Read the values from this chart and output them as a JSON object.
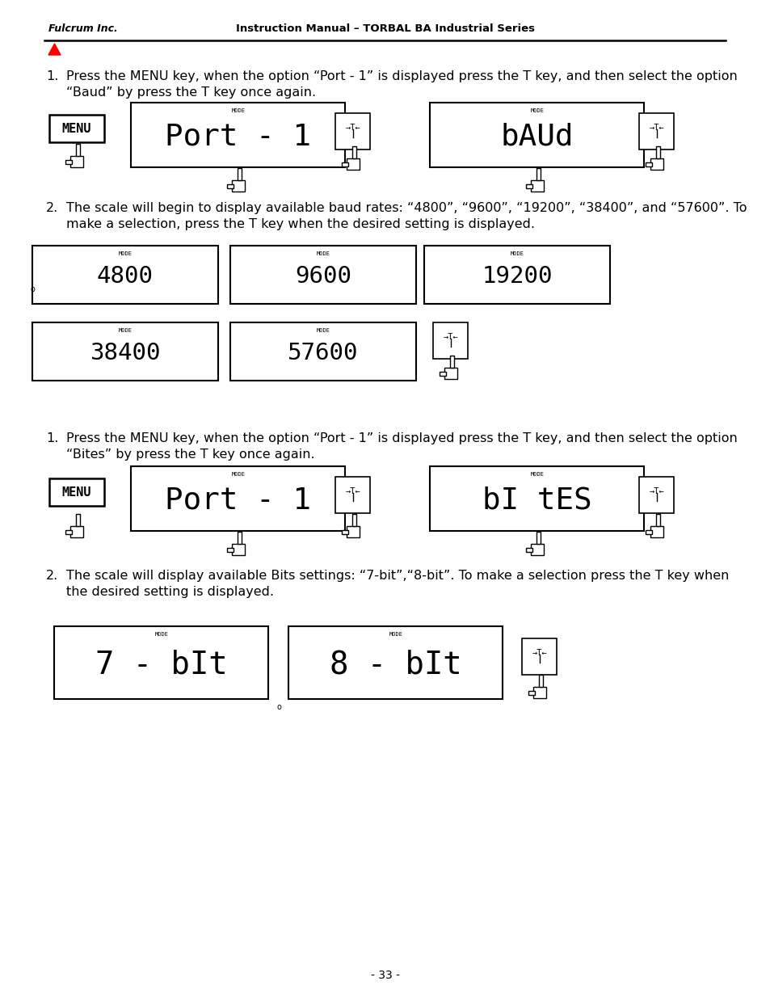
{
  "page_num": "- 33 -",
  "header_left": "Fulcrum Inc.",
  "header_center": "Instruction Manual – TORBAL BA Industrial Series",
  "bg_color": "#ffffff",
  "text_color": "#000000",
  "s1_step1_line1": "Press the MENU key, when the option “Port - 1” is displayed press the T key, and then select the option",
  "s1_step1_line2": "“Baud” by press the T key once again.",
  "s1_step2_line1": "The scale will begin to display available baud rates: “4800”, “9600”, “19200”, “38400”, and “57600”. To",
  "s1_step2_line2": "make a selection, press the T key when the desired setting is displayed.",
  "s2_step1_line1": "Press the MENU key, when the option “Port - 1” is displayed press the T key, and then select the option",
  "s2_step1_line2": "“Bites” by press the T key once again.",
  "s2_step2_line1": "The scale will display available Bits settings: “7-bit”,“8-bit”. To make a selection press the T key when",
  "s2_step2_line2": "the desired setting is displayed.",
  "body_font_size": 11.5,
  "lcd_font": "monospace"
}
